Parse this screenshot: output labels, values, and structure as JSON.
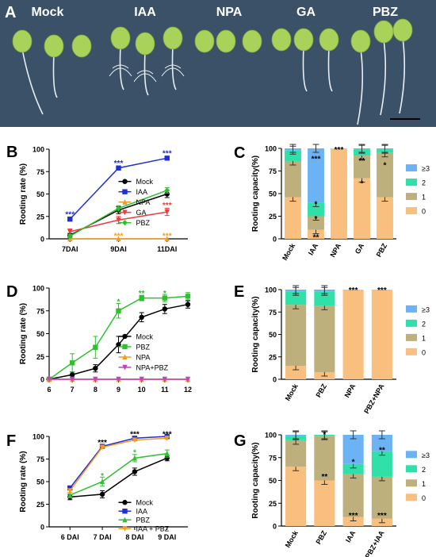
{
  "photo_panel": {
    "letter": "A",
    "labels": [
      "Mock",
      "IAA",
      "NPA",
      "GA",
      "PBZ"
    ],
    "background_color": "#3b5168",
    "leaf_color": "#a9d25a"
  },
  "chart_data": [
    {
      "panel": "B",
      "type": "line",
      "xlabel": "",
      "ylabel": "Rooting rate (%)",
      "categories": [
        "7DAI",
        "9DAI",
        "11DAI"
      ],
      "ylim": [
        0,
        100
      ],
      "yticks": [
        0,
        25,
        50,
        75,
        100
      ],
      "legend_position": "right",
      "series": [
        {
          "name": "Mock",
          "values": [
            4,
            32,
            50
          ],
          "errors": [
            2,
            4,
            4
          ],
          "color": "#000000",
          "marker": "circle"
        },
        {
          "name": "IAA",
          "values": [
            22,
            79,
            90
          ],
          "errors": [
            1,
            2,
            1
          ],
          "color": "#1f2fd4",
          "marker": "square"
        },
        {
          "name": "NPA",
          "values": [
            0,
            0,
            0
          ],
          "errors": [
            0,
            0,
            0
          ],
          "color": "#f59a1b",
          "marker": "triangle-up"
        },
        {
          "name": "GA",
          "values": [
            8,
            21,
            30
          ],
          "errors": [
            3,
            4,
            4
          ],
          "color": "#ee3b3b",
          "marker": "triangle-down"
        },
        {
          "name": "PBZ",
          "values": [
            3,
            34,
            54
          ],
          "errors": [
            2,
            3,
            3
          ],
          "color": "#2fbf2f",
          "marker": "diamond"
        }
      ],
      "annotations": [
        {
          "text": "***",
          "x": "7DAI",
          "y": 27,
          "color": "#1f2fd4"
        },
        {
          "text": "***",
          "x": "9DAI",
          "y": 84,
          "color": "#1f2fd4"
        },
        {
          "text": "***",
          "x": "11DAI",
          "y": 95,
          "color": "#1f2fd4"
        },
        {
          "text": "***",
          "x": "11DAI",
          "y": 37,
          "color": "#ee3b3b"
        },
        {
          "text": "***",
          "x": "9DAI",
          "y": 3,
          "color": "#f59a1b"
        },
        {
          "text": "***",
          "x": "11DAI",
          "y": 3,
          "color": "#f59a1b"
        }
      ]
    },
    {
      "panel": "C",
      "type": "bar",
      "stacked": true,
      "xlabel": "",
      "ylabel": "Rooting capacity(%)",
      "categories": [
        "Mock",
        "IAA",
        "NPA",
        "GA",
        "PBZ"
      ],
      "ylim": [
        0,
        100
      ],
      "yticks": [
        0,
        25,
        50,
        75,
        100
      ],
      "legend_position": "right",
      "series": [
        {
          "name": "0",
          "values": [
            46,
            10,
            100,
            67,
            46
          ],
          "color": "#f9bf7f"
        },
        {
          "name": "1",
          "values": [
            40,
            15,
            0,
            25,
            49
          ],
          "color": "#bdb07c"
        },
        {
          "name": "2",
          "values": [
            12,
            15,
            0,
            7,
            4
          ],
          "color": "#2fe0a8"
        },
        {
          "name": "≥3",
          "values": [
            2,
            60,
            0,
            1,
            1
          ],
          "color": "#6bb3f4"
        }
      ],
      "annotations": [
        {
          "text": "***",
          "x": "IAA",
          "y": 89
        },
        {
          "text": "*",
          "x": "IAA",
          "y": 39
        },
        {
          "text": "*",
          "x": "IAA",
          "y": 23
        },
        {
          "text": "**",
          "x": "IAA",
          "y": 2
        },
        {
          "text": "***",
          "x": "NPA",
          "y": 99
        },
        {
          "text": "**",
          "x": "GA",
          "y": 87
        },
        {
          "text": "*",
          "x": "GA",
          "y": 62
        },
        {
          "text": "*",
          "x": "PBZ",
          "y": 82
        }
      ]
    },
    {
      "panel": "D",
      "type": "line",
      "xlabel": "",
      "ylabel": "Rooting rate (%)",
      "x": [
        6,
        7,
        8,
        9,
        10,
        11,
        12
      ],
      "xlim": [
        6,
        12
      ],
      "ylim": [
        0,
        100
      ],
      "yticks": [
        0,
        25,
        50,
        75,
        100
      ],
      "legend_position": "bottom-right",
      "series": [
        {
          "name": "Mock",
          "values": [
            0,
            5,
            12,
            38,
            68,
            77,
            82
          ],
          "errors": [
            0,
            3,
            4,
            9,
            5,
            5,
            4
          ],
          "color": "#000000",
          "marker": "circle"
        },
        {
          "name": "PBZ",
          "values": [
            0,
            18,
            35,
            75,
            89,
            89,
            91
          ],
          "errors": [
            0,
            10,
            12,
            8,
            3,
            4,
            4
          ],
          "color": "#2fbf2f",
          "marker": "square"
        },
        {
          "name": "NPA",
          "values": [
            0,
            0,
            0,
            0,
            0,
            0,
            0
          ],
          "errors": [
            0,
            0,
            0,
            0,
            0,
            0,
            0
          ],
          "color": "#f59a1b",
          "marker": "triangle-up"
        },
        {
          "name": "NPA+PBZ",
          "values": [
            0,
            0,
            0,
            0,
            0,
            0,
            0
          ],
          "errors": [
            0,
            0,
            0,
            0,
            0,
            0,
            0
          ],
          "color": "#c540c5",
          "marker": "triangle-down"
        }
      ],
      "annotations": [
        {
          "text": "*",
          "x": 9,
          "y": 85,
          "color": "#2fbf2f"
        },
        {
          "text": "**",
          "x": 10,
          "y": 94,
          "color": "#2fbf2f"
        },
        {
          "text": "*",
          "x": 11,
          "y": 94,
          "color": "#2fbf2f"
        }
      ]
    },
    {
      "panel": "E",
      "type": "bar",
      "stacked": true,
      "xlabel": "",
      "ylabel": "Rooting capacity(%)",
      "categories": [
        "Mock",
        "PBZ",
        "NPA",
        "PBZ+NPA"
      ],
      "ylim": [
        0,
        100
      ],
      "yticks": [
        0,
        25,
        50,
        75,
        100
      ],
      "legend_position": "right",
      "series": [
        {
          "name": "0",
          "values": [
            15,
            8,
            100,
            100
          ],
          "color": "#f9bf7f"
        },
        {
          "name": "1",
          "values": [
            68,
            74,
            0,
            0
          ],
          "color": "#bdb07c"
        },
        {
          "name": "2",
          "values": [
            15,
            16,
            0,
            0
          ],
          "color": "#2fe0a8"
        },
        {
          "name": "≥3",
          "values": [
            2,
            2,
            0,
            0
          ],
          "color": "#6bb3f4"
        }
      ],
      "annotations": [
        {
          "text": "***",
          "x": "NPA",
          "y": 100
        },
        {
          "text": "***",
          "x": "PBZ+NPA",
          "y": 100
        }
      ]
    },
    {
      "panel": "F",
      "type": "line",
      "xlabel": "",
      "ylabel": "Rooting rate (%)",
      "categories": [
        "6 DAI",
        "7 DAI",
        "8 DAI",
        "9 DAI"
      ],
      "ylim": [
        0,
        100
      ],
      "yticks": [
        0,
        25,
        50,
        75,
        100
      ],
      "legend_position": "bottom-right",
      "series": [
        {
          "name": "Mock",
          "values": [
            33,
            36,
            61,
            76
          ],
          "errors": [
            3,
            4,
            4,
            3
          ],
          "color": "#000000",
          "marker": "circle"
        },
        {
          "name": "IAA",
          "values": [
            43,
            89,
            98,
            100
          ],
          "errors": [
            2,
            1,
            1,
            1
          ],
          "color": "#1f2fd4",
          "marker": "square"
        },
        {
          "name": "PBZ",
          "values": [
            35,
            50,
            76,
            81
          ],
          "errors": [
            3,
            5,
            4,
            4
          ],
          "color": "#2fbf2f",
          "marker": "triangle-up"
        },
        {
          "name": "IAA + PBZ",
          "values": [
            40,
            88,
            96,
            98
          ],
          "errors": [
            2,
            1,
            1,
            1
          ],
          "color": "#f59a1b",
          "marker": "triangle-down"
        }
      ],
      "annotations": [
        {
          "text": "***",
          "x": "7 DAI",
          "y": 93
        },
        {
          "text": "***",
          "x": "8 DAI",
          "y": 102
        },
        {
          "text": "***",
          "x": "9 DAI",
          "y": 102
        },
        {
          "text": "*",
          "x": "7 DAI",
          "y": 56,
          "color": "#2fbf2f"
        },
        {
          "text": "*",
          "x": "8 DAI",
          "y": 82,
          "color": "#2fbf2f"
        }
      ]
    },
    {
      "panel": "G",
      "type": "bar",
      "stacked": true,
      "xlabel": "",
      "ylabel": "Rooting capacity(%)",
      "categories": [
        "Mock",
        "PBZ",
        "IAA",
        "PBZ+IAA"
      ],
      "ylim": [
        0,
        100
      ],
      "yticks": [
        0,
        25,
        50,
        75,
        100
      ],
      "legend_position": "right",
      "series": [
        {
          "name": "0",
          "values": [
            65,
            50,
            10,
            8
          ],
          "color": "#f9bf7f"
        },
        {
          "name": "1",
          "values": [
            29,
            49,
            47,
            46
          ],
          "color": "#bdb07c"
        },
        {
          "name": "2",
          "values": [
            5,
            1,
            11,
            28
          ],
          "color": "#2fe0a8"
        },
        {
          "name": "≥3",
          "values": [
            1,
            0,
            32,
            18
          ],
          "color": "#6bb3f4"
        }
      ],
      "annotations": [
        {
          "text": "*",
          "x": "PBZ",
          "y": 101
        },
        {
          "text": "**",
          "x": "PBZ",
          "y": 55
        },
        {
          "text": "*",
          "x": "IAA",
          "y": 71
        },
        {
          "text": "***",
          "x": "IAA",
          "y": 12
        },
        {
          "text": "**",
          "x": "PBZ+IAA",
          "y": 84
        },
        {
          "text": "***",
          "x": "PBZ+IAA",
          "y": 12
        }
      ]
    }
  ],
  "panel_letters": [
    "B",
    "C",
    "D",
    "E",
    "F",
    "G"
  ]
}
